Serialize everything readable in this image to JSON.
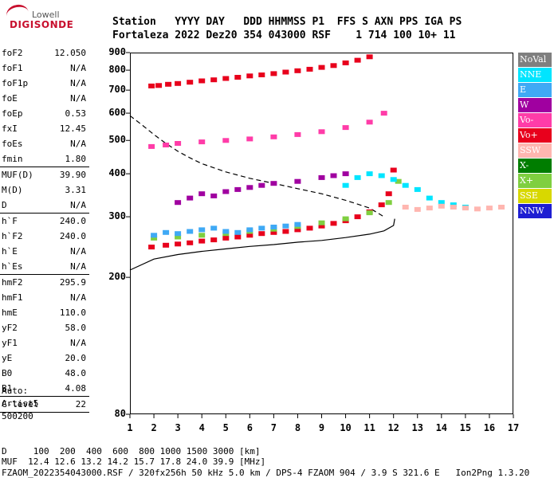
{
  "logo": {
    "maker": "Lowell",
    "product": "DIGISONDE"
  },
  "header": {
    "line1": "Station   YYYY DAY   DDD HHMMSS P1  FFS S AXN PPS IGA PS",
    "line2": "Fortaleza 2022 Dez20 354 043000 RSF    1 714 100 10+ 11"
  },
  "params": [
    {
      "name": "foF2",
      "value": "12.050"
    },
    {
      "name": "foF1",
      "value": "N/A"
    },
    {
      "name": "foF1p",
      "value": "N/A"
    },
    {
      "name": "foE",
      "value": "N/A"
    },
    {
      "name": "foEp",
      "value": "0.53"
    },
    {
      "name": "fxI",
      "value": "12.45"
    },
    {
      "name": "foEs",
      "value": "N/A"
    },
    {
      "name": "fmin",
      "value": "1.80"
    },
    {
      "divider": true
    },
    {
      "name": "MUF(D)",
      "value": "39.90"
    },
    {
      "name": "M(D)",
      "value": "3.31"
    },
    {
      "name": "D",
      "value": "N/A"
    },
    {
      "divider": true
    },
    {
      "name": "h`F",
      "value": "240.0"
    },
    {
      "name": "h`F2",
      "value": "240.0"
    },
    {
      "name": "h`E",
      "value": "N/A"
    },
    {
      "name": "h`Es",
      "value": "N/A"
    },
    {
      "divider": true
    },
    {
      "name": "hmF2",
      "value": "295.9"
    },
    {
      "name": "hmF1",
      "value": "N/A"
    },
    {
      "name": "hmE",
      "value": "110.0"
    },
    {
      "name": "yF2",
      "value": "58.0"
    },
    {
      "name": "yF1",
      "value": "N/A"
    },
    {
      "name": "yE",
      "value": "20.0"
    },
    {
      "name": "B0",
      "value": "48.0"
    },
    {
      "name": "B1",
      "value": "4.08"
    },
    {
      "divider": true
    },
    {
      "name": "C-level",
      "value": "22"
    },
    {
      "divider": true
    }
  ],
  "auto": {
    "line1": "Auto:",
    "line2": "Artist5",
    "line3": "500200"
  },
  "legend": [
    {
      "label": "NoVal",
      "color": "#7f7f7f"
    },
    {
      "label": "NNE",
      "color": "#00e5ff"
    },
    {
      "label": "E",
      "color": "#3fa9f5"
    },
    {
      "label": "W",
      "color": "#a000a0"
    },
    {
      "label": "Vo-",
      "color": "#ff3ca8"
    },
    {
      "label": "Vo+",
      "color": "#e8001c"
    },
    {
      "label": "SSW",
      "color": "#ffb6b0"
    },
    {
      "label": "X-",
      "color": "#007d00"
    },
    {
      "label": "X+",
      "color": "#7fcf40"
    },
    {
      "label": "SSE",
      "color": "#d8d800"
    },
    {
      "label": "NNW",
      "color": "#1e1ed2"
    }
  ],
  "footer": {
    "line1": "D     100  200  400  600  800 1000 1500 3000 [km]",
    "line2": "MUF  12.4 12.6 13.2 14.2 15.7 17.8 24.0 39.9 [MHz]",
    "line3": "FZAOM_2022354043000.RSF / 320fx256h 50 kHz 5.0 km / DPS-4 FZAOM 904 / 3.9 S 321.6 E   Ion2Png 1.3.20"
  },
  "chart_data": {
    "type": "scatter",
    "title": "",
    "xlabel": "",
    "ylabel": "",
    "xlim": [
      1,
      17
    ],
    "ylim": [
      80,
      900
    ],
    "x_ticks": [
      1,
      2,
      3,
      4,
      5,
      6,
      7,
      8,
      9,
      10,
      11,
      12,
      13,
      14,
      15,
      16,
      17
    ],
    "y_ticks": [
      80,
      200,
      300,
      400,
      500,
      600,
      700,
      800,
      900
    ],
    "y_scale": "log",
    "grid": false,
    "legend_position": "right",
    "series": [
      {
        "name": "Vo+",
        "color": "#e8001c",
        "x": [
          1.9,
          2.5,
          3.0,
          3.5,
          4.0,
          4.5,
          5.0,
          5.5,
          6.0,
          6.5,
          7.0,
          7.5,
          8.0,
          8.5,
          9.0,
          9.5,
          10.0,
          10.5,
          11.0,
          11.5,
          11.8,
          12.0
        ],
        "y": [
          245,
          248,
          250,
          252,
          255,
          257,
          260,
          262,
          265,
          268,
          270,
          272,
          275,
          278,
          282,
          287,
          292,
          300,
          310,
          325,
          350,
          410
        ]
      },
      {
        "name": "X+",
        "color": "#7fcf40",
        "x": [
          2.0,
          3.0,
          4.0,
          5.0,
          6.0,
          7.0,
          8.0,
          9.0,
          10.0,
          11.0,
          11.8,
          12.2
        ],
        "y": [
          260,
          262,
          265,
          268,
          272,
          276,
          281,
          288,
          296,
          308,
          330,
          380
        ]
      },
      {
        "name": "E",
        "color": "#3fa9f5",
        "x": [
          2.0,
          2.5,
          3.0,
          3.5,
          4.0,
          4.5,
          5.0,
          5.5,
          6.0,
          6.5,
          7.0,
          7.5,
          8.0
        ],
        "y": [
          265,
          270,
          268,
          272,
          275,
          278,
          272,
          270,
          275,
          278,
          280,
          282,
          285
        ]
      },
      {
        "name": "W",
        "color": "#a000a0",
        "x": [
          3.0,
          3.5,
          4.0,
          4.5,
          5.0,
          5.5,
          6.0,
          6.5,
          7.0,
          8.0,
          9.0,
          9.5,
          10.0
        ],
        "y": [
          330,
          340,
          350,
          345,
          355,
          360,
          365,
          370,
          375,
          380,
          390,
          395,
          400
        ]
      },
      {
        "name": "Vo-",
        "color": "#ff3ca8",
        "x": [
          1.9,
          2.5,
          3.0,
          4.0,
          5.0,
          6.0,
          7.0,
          8.0,
          9.0,
          10.0,
          11.0,
          11.6
        ],
        "y": [
          480,
          485,
          490,
          495,
          500,
          505,
          512,
          520,
          530,
          545,
          565,
          600
        ]
      },
      {
        "name": "Vo+ (3rd)",
        "color": "#e8001c",
        "x": [
          1.9,
          2.2,
          2.6,
          3.0,
          3.5,
          4.0,
          4.5,
          5.0,
          5.5,
          6.0,
          6.5,
          7.0,
          7.5,
          8.0,
          8.5,
          9.0,
          9.5,
          10.0,
          10.5,
          11.0
        ],
        "y": [
          720,
          722,
          728,
          732,
          738,
          745,
          750,
          757,
          763,
          770,
          775,
          782,
          790,
          797,
          805,
          815,
          825,
          840,
          855,
          875
        ]
      },
      {
        "name": "NNE",
        "color": "#00e5ff",
        "x": [
          10.0,
          10.5,
          11.0,
          11.5,
          12.0,
          12.5,
          13.0,
          13.5,
          14.0,
          14.5,
          15.0
        ],
        "y": [
          370,
          390,
          400,
          395,
          385,
          370,
          360,
          340,
          330,
          325,
          320
        ]
      },
      {
        "name": "SSW",
        "color": "#ffb6b0",
        "x": [
          12.5,
          13.0,
          13.5,
          14.0,
          14.5,
          15.0,
          15.5,
          16.0,
          16.5
        ],
        "y": [
          320,
          315,
          318,
          322,
          320,
          318,
          316,
          318,
          320
        ]
      }
    ],
    "curves": [
      {
        "name": "profile",
        "style": "solid",
        "x": [
          1.0,
          2.0,
          3.0,
          4.0,
          5.0,
          6.0,
          7.0,
          8.0,
          9.0,
          10.0,
          11.0,
          11.6,
          12.0,
          12.05
        ],
        "y": [
          210,
          226,
          233,
          238,
          242,
          246,
          249,
          253,
          256,
          261,
          267,
          273,
          283,
          296
        ]
      },
      {
        "name": "muf",
        "style": "dashed",
        "x": [
          1.0,
          1.5,
          2.0,
          2.5,
          3.0,
          3.5,
          4.0,
          5.0,
          6.0,
          7.0,
          8.0,
          9.0,
          10.0,
          11.0,
          11.6
        ],
        "y": [
          590,
          555,
          520,
          490,
          465,
          445,
          428,
          405,
          388,
          375,
          362,
          350,
          335,
          318,
          300
        ]
      }
    ]
  }
}
